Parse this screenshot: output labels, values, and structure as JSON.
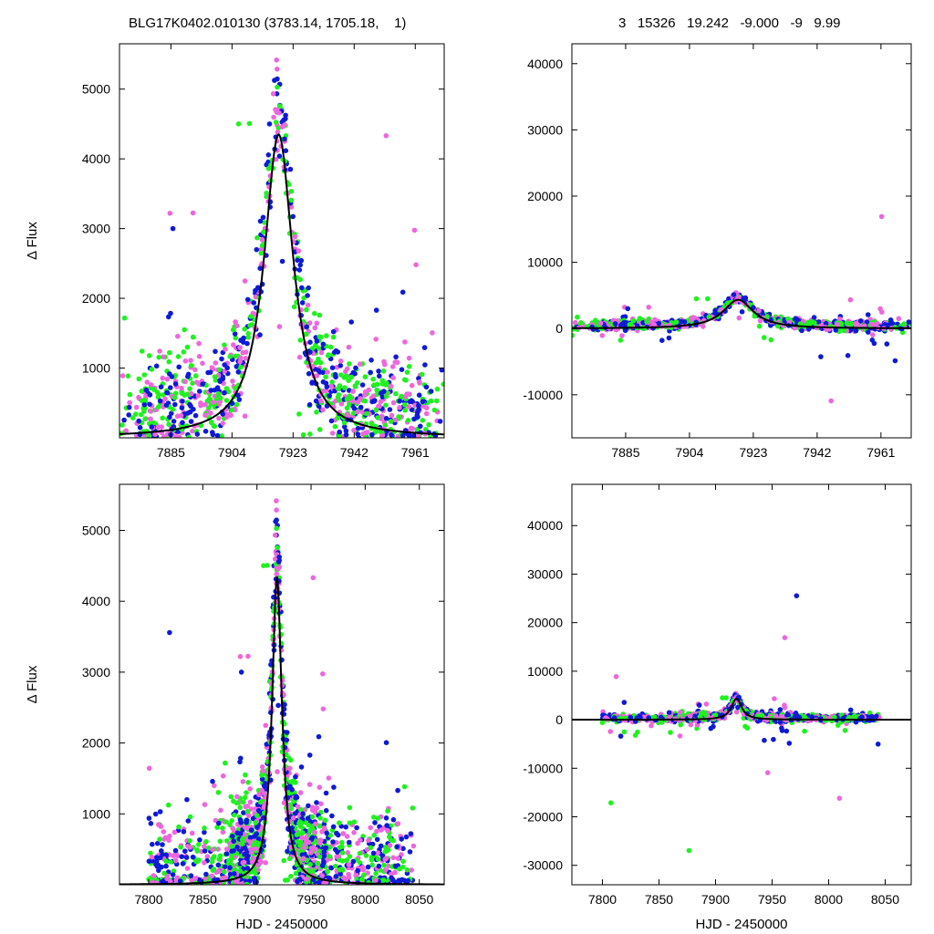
{
  "header": {
    "left": "BLG17K0402.010130 (3783.14, 1705.18,    1)",
    "right": "3   15326   19.242   -9.000   -9   9.99"
  },
  "colors": {
    "series_a": "#ee66dd",
    "series_b": "#0d1ad6",
    "series_c": "#1ef21e",
    "model": "#000000"
  },
  "chart_data": [
    {
      "type": "scatter",
      "panel": "top-left",
      "xlabel": "",
      "ylabel": "Δ Flux",
      "xlim": [
        7869,
        7970
      ],
      "ylim": [
        0,
        5650
      ],
      "xticks": [
        7885,
        7904,
        7923,
        7942,
        7961
      ],
      "yticks": [
        1000,
        2000,
        3000,
        4000,
        5000
      ],
      "model": {
        "t0": 7918.5,
        "tau": 5.5,
        "amp": 4350,
        "base": 0
      }
    },
    {
      "type": "scatter",
      "panel": "top-right",
      "xlabel": "",
      "ylabel": "",
      "xlim": [
        7869,
        7970
      ],
      "ylim": [
        -16500,
        43000
      ],
      "xticks": [
        7885,
        7904,
        7923,
        7942,
        7961
      ],
      "yticks": [
        -10000,
        0,
        10000,
        20000,
        30000,
        40000
      ],
      "model": {
        "t0": 7918.5,
        "tau": 5.5,
        "amp": 4350,
        "base": 0
      }
    },
    {
      "type": "scatter",
      "panel": "bottom-left",
      "xlabel": "HJD - 2450000",
      "ylabel": "Δ Flux",
      "xlim": [
        7773,
        24498.0
      ],
      "ylim": [
        0,
        5650
      ],
      "xticks": [
        7800,
        7850,
        7900,
        7950,
        8000,
        8050
      ],
      "yticks": [
        1000,
        2000,
        3000,
        4000,
        5000
      ],
      "model": {
        "t0": 7918.5,
        "tau": 5.5,
        "amp": 4350,
        "base": 0
      }
    },
    {
      "type": "scatter",
      "panel": "bottom-right",
      "xlabel": "HJD - 2450000",
      "ylabel": "",
      "xlim": [
        7773,
        8073
      ],
      "ylim": [
        -34000,
        48500
      ],
      "xticks": [
        7800,
        7850,
        7900,
        7950,
        8000,
        8050
      ],
      "yticks": [
        -30000,
        -20000,
        -10000,
        0,
        10000,
        20000,
        30000,
        40000
      ],
      "model": {
        "t0": 7918.5,
        "tau": 5.5,
        "amp": 4350,
        "base": 0
      }
    }
  ]
}
